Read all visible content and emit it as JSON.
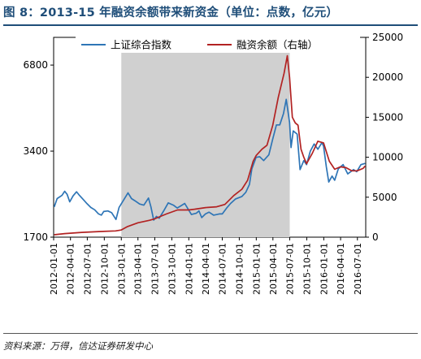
{
  "figure": {
    "title": "图 8：2013-15 年融资余额带来新资金（单位：点数，亿元）",
    "source": "资料来源：万得，信达证券研发中心"
  },
  "colors": {
    "title": "#1f4e79",
    "index_line": "#2e75b6",
    "margin_line": "#b22222",
    "shade": "#d0d0d0"
  },
  "chart_data": {
    "type": "line",
    "x_tick_labels": [
      "2012-01-01",
      "2012-04-01",
      "2012-07-01",
      "2012-10-01",
      "2013-01-01",
      "2013-04-01",
      "2013-07-01",
      "2013-10-01",
      "2014-01-01",
      "2014-04-01",
      "2014-07-01",
      "2014-10-01",
      "2015-01-01",
      "2015-04-01",
      "2015-07-01",
      "2015-10-01",
      "2016-01-01",
      "2016-04-01",
      "2016-07-01"
    ],
    "x_range": [
      "2012-01-01",
      "2016-08-15"
    ],
    "y_left": {
      "scale": "log",
      "range": [
        1700,
        8500
      ],
      "ticks": [
        1700,
        3400,
        6800
      ],
      "tick_labels": [
        "1700",
        "3400",
        "6800"
      ]
    },
    "y_right": {
      "scale": "linear",
      "range": [
        0,
        25000
      ],
      "ticks": [
        0,
        5000,
        10000,
        15000,
        20000,
        25000
      ],
      "tick_labels": [
        "0",
        "5000",
        "10000",
        "15000",
        "20000",
        "25000"
      ]
    },
    "shaded_period": [
      "2013-01-01",
      "2015-07-01"
    ],
    "legend_position": "top",
    "grid": false,
    "series": [
      {
        "name": "上证综合指数",
        "axis": "left",
        "color": "#2e75b6",
        "points": [
          [
            "2012-01-04",
            2169
          ],
          [
            "2012-01-20",
            2320
          ],
          [
            "2012-02-15",
            2380
          ],
          [
            "2012-03-01",
            2460
          ],
          [
            "2012-03-14",
            2400
          ],
          [
            "2012-03-28",
            2260
          ],
          [
            "2012-04-15",
            2370
          ],
          [
            "2012-05-04",
            2450
          ],
          [
            "2012-05-20",
            2380
          ],
          [
            "2012-06-10",
            2300
          ],
          [
            "2012-06-30",
            2225
          ],
          [
            "2012-07-20",
            2160
          ],
          [
            "2012-08-10",
            2120
          ],
          [
            "2012-08-31",
            2050
          ],
          [
            "2012-09-15",
            2030
          ],
          [
            "2012-09-28",
            2090
          ],
          [
            "2012-10-20",
            2100
          ],
          [
            "2012-11-10",
            2070
          ],
          [
            "2012-12-03",
            1960
          ],
          [
            "2012-12-20",
            2160
          ],
          [
            "2013-01-15",
            2300
          ],
          [
            "2013-02-06",
            2430
          ],
          [
            "2013-02-25",
            2320
          ],
          [
            "2013-03-15",
            2280
          ],
          [
            "2013-04-10",
            2220
          ],
          [
            "2013-05-03",
            2200
          ],
          [
            "2013-05-28",
            2330
          ],
          [
            "2013-06-10",
            2170
          ],
          [
            "2013-06-25",
            1950
          ],
          [
            "2013-07-10",
            2010
          ],
          [
            "2013-07-25",
            1980
          ],
          [
            "2013-08-20",
            2110
          ],
          [
            "2013-09-12",
            2240
          ],
          [
            "2013-10-10",
            2200
          ],
          [
            "2013-10-30",
            2150
          ],
          [
            "2013-11-15",
            2180
          ],
          [
            "2013-12-10",
            2230
          ],
          [
            "2013-12-31",
            2116
          ],
          [
            "2014-01-15",
            2040
          ],
          [
            "2014-02-10",
            2060
          ],
          [
            "2014-02-25",
            2100
          ],
          [
            "2014-03-12",
            1990
          ],
          [
            "2014-04-01",
            2050
          ],
          [
            "2014-04-20",
            2080
          ],
          [
            "2014-05-15",
            2030
          ],
          [
            "2014-06-15",
            2050
          ],
          [
            "2014-07-01",
            2050
          ],
          [
            "2014-07-25",
            2150
          ],
          [
            "2014-08-15",
            2230
          ],
          [
            "2014-09-10",
            2310
          ],
          [
            "2014-10-15",
            2360
          ],
          [
            "2014-11-05",
            2440
          ],
          [
            "2014-11-25",
            2600
          ],
          [
            "2014-12-08",
            2950
          ],
          [
            "2014-12-31",
            3235
          ],
          [
            "2015-01-20",
            3250
          ],
          [
            "2015-02-10",
            3150
          ],
          [
            "2015-03-10",
            3300
          ],
          [
            "2015-03-31",
            3750
          ],
          [
            "2015-04-20",
            4200
          ],
          [
            "2015-05-08",
            4200
          ],
          [
            "2015-05-28",
            4600
          ],
          [
            "2015-06-12",
            5160
          ],
          [
            "2015-06-30",
            4280
          ],
          [
            "2015-07-08",
            3500
          ],
          [
            "2015-07-20",
            4000
          ],
          [
            "2015-08-10",
            3900
          ],
          [
            "2015-08-26",
            2930
          ],
          [
            "2015-09-15",
            3150
          ],
          [
            "2015-09-30",
            3050
          ],
          [
            "2015-10-20",
            3400
          ],
          [
            "2015-11-10",
            3600
          ],
          [
            "2015-11-30",
            3450
          ],
          [
            "2015-12-22",
            3640
          ],
          [
            "2015-12-31",
            3539
          ],
          [
            "2016-01-15",
            3000
          ],
          [
            "2016-01-28",
            2650
          ],
          [
            "2016-02-15",
            2780
          ],
          [
            "2016-02-29",
            2690
          ],
          [
            "2016-03-20",
            2950
          ],
          [
            "2016-04-15",
            3050
          ],
          [
            "2016-05-10",
            2830
          ],
          [
            "2016-06-10",
            2930
          ],
          [
            "2016-06-27",
            2880
          ],
          [
            "2016-07-20",
            3050
          ],
          [
            "2016-08-12",
            3080
          ]
        ]
      },
      {
        "name": "融资余额（右轴）",
        "axis": "right",
        "color": "#b22222",
        "points": [
          [
            "2012-01-04",
            300
          ],
          [
            "2012-03-01",
            450
          ],
          [
            "2012-06-01",
            600
          ],
          [
            "2012-09-01",
            700
          ],
          [
            "2012-12-01",
            780
          ],
          [
            "2012-12-31",
            890
          ],
          [
            "2013-02-01",
            1300
          ],
          [
            "2013-04-01",
            1800
          ],
          [
            "2013-06-01",
            2100
          ],
          [
            "2013-07-01",
            2300
          ],
          [
            "2013-09-01",
            2900
          ],
          [
            "2013-11-01",
            3400
          ],
          [
            "2013-12-31",
            3400
          ],
          [
            "2014-02-01",
            3500
          ],
          [
            "2014-04-01",
            3700
          ],
          [
            "2014-06-01",
            3800
          ],
          [
            "2014-07-15",
            4100
          ],
          [
            "2014-09-01",
            5200
          ],
          [
            "2014-10-15",
            6000
          ],
          [
            "2014-11-15",
            7100
          ],
          [
            "2014-12-15",
            9500
          ],
          [
            "2014-12-31",
            10200
          ],
          [
            "2015-01-31",
            11000
          ],
          [
            "2015-02-28",
            11500
          ],
          [
            "2015-03-31",
            14000
          ],
          [
            "2015-04-30",
            17500
          ],
          [
            "2015-05-31",
            20500
          ],
          [
            "2015-06-18",
            22700
          ],
          [
            "2015-06-30",
            20000
          ],
          [
            "2015-07-15",
            15000
          ],
          [
            "2015-07-31",
            14300
          ],
          [
            "2015-08-15",
            14000
          ],
          [
            "2015-08-31",
            11000
          ],
          [
            "2015-09-15",
            10000
          ],
          [
            "2015-09-30",
            9200
          ],
          [
            "2015-10-31",
            10500
          ],
          [
            "2015-11-30",
            12000
          ],
          [
            "2015-12-31",
            11800
          ],
          [
            "2016-01-31",
            9500
          ],
          [
            "2016-02-29",
            8500
          ],
          [
            "2016-03-31",
            8800
          ],
          [
            "2016-04-30",
            8700
          ],
          [
            "2016-05-31",
            8300
          ],
          [
            "2016-06-30",
            8300
          ],
          [
            "2016-07-31",
            8600
          ],
          [
            "2016-08-12",
            8900
          ]
        ]
      }
    ]
  }
}
